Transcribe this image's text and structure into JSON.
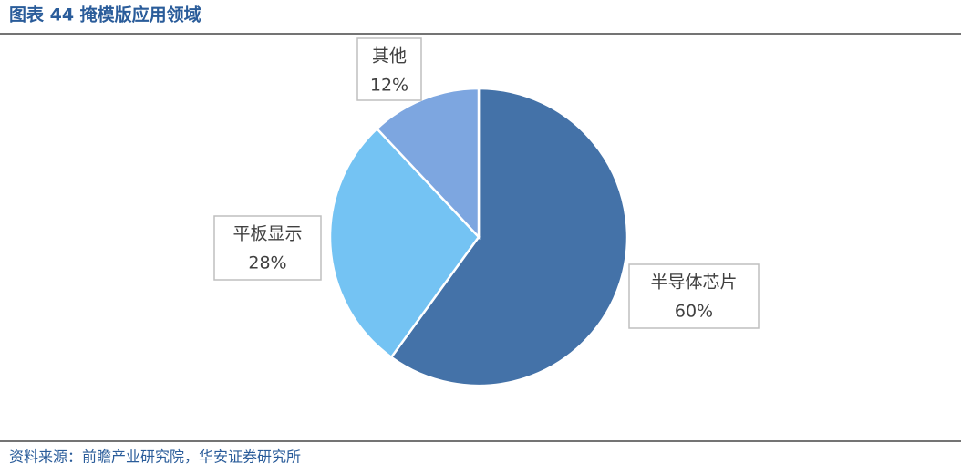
{
  "chart_data": {
    "type": "pie",
    "title": "图表 44 掩模版应用领域",
    "categories": [
      "半导体芯片",
      "平板显示",
      "其他"
    ],
    "values": [
      60,
      28,
      12
    ],
    "value_labels": [
      "60%",
      "28%",
      "12%"
    ],
    "colors": [
      "#4472a8",
      "#74c3f3",
      "#7da6e0"
    ],
    "source": "资料来源：前瞻产业研究院，华安证券研究所"
  }
}
